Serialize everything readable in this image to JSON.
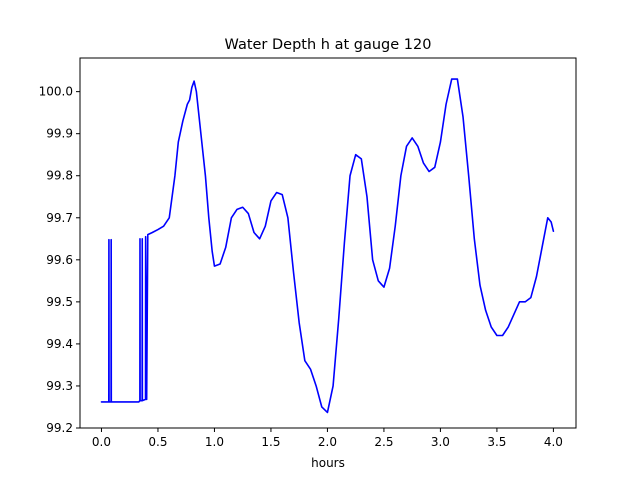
{
  "chart_data": {
    "type": "line",
    "title": "Water Depth h at gauge 120",
    "xlabel": "hours",
    "ylabel": "",
    "xlim": [
      -0.19,
      4.2
    ],
    "ylim": [
      99.2,
      100.08
    ],
    "x_ticks": [
      0.0,
      0.5,
      1.0,
      1.5,
      2.0,
      2.5,
      3.0,
      3.5,
      4.0
    ],
    "x_tick_labels": [
      "0.0",
      "0.5",
      "1.0",
      "1.5",
      "2.0",
      "2.5",
      "3.0",
      "3.5",
      "4.0"
    ],
    "y_ticks": [
      99.2,
      99.3,
      99.4,
      99.5,
      99.6,
      99.7,
      99.8,
      99.9,
      100.0
    ],
    "y_tick_labels": [
      "99.2",
      "99.3",
      "99.4",
      "99.5",
      "99.6",
      "99.7",
      "99.8",
      "99.9",
      "100.0"
    ],
    "grid": false,
    "legend": "none",
    "series": [
      {
        "color": "#0000ff",
        "points": [
          [
            0.0,
            99.262
          ],
          [
            0.065,
            99.262
          ],
          [
            0.066,
            99.648
          ],
          [
            0.067,
            99.262
          ],
          [
            0.085,
            99.262
          ],
          [
            0.086,
            99.648
          ],
          [
            0.087,
            99.262
          ],
          [
            0.33,
            99.262
          ],
          [
            0.34,
            99.265
          ],
          [
            0.341,
            99.65
          ],
          [
            0.342,
            99.265
          ],
          [
            0.36,
            99.265
          ],
          [
            0.361,
            99.65
          ],
          [
            0.362,
            99.265
          ],
          [
            0.39,
            99.268
          ],
          [
            0.391,
            99.655
          ],
          [
            0.4,
            99.268
          ],
          [
            0.41,
            99.66
          ],
          [
            0.45,
            99.665
          ],
          [
            0.5,
            99.672
          ],
          [
            0.55,
            99.68
          ],
          [
            0.6,
            99.7
          ],
          [
            0.65,
            99.8
          ],
          [
            0.68,
            99.88
          ],
          [
            0.72,
            99.93
          ],
          [
            0.76,
            99.97
          ],
          [
            0.78,
            99.98
          ],
          [
            0.8,
            100.01
          ],
          [
            0.82,
            100.025
          ],
          [
            0.84,
            100.0
          ],
          [
            0.88,
            99.9
          ],
          [
            0.92,
            99.8
          ],
          [
            0.95,
            99.7
          ],
          [
            0.98,
            99.62
          ],
          [
            1.0,
            99.585
          ],
          [
            1.05,
            99.59
          ],
          [
            1.1,
            99.63
          ],
          [
            1.15,
            99.7
          ],
          [
            1.2,
            99.72
          ],
          [
            1.25,
            99.725
          ],
          [
            1.3,
            99.71
          ],
          [
            1.35,
            99.665
          ],
          [
            1.4,
            99.65
          ],
          [
            1.45,
            99.68
          ],
          [
            1.5,
            99.74
          ],
          [
            1.55,
            99.76
          ],
          [
            1.6,
            99.755
          ],
          [
            1.65,
            99.7
          ],
          [
            1.7,
            99.57
          ],
          [
            1.75,
            99.45
          ],
          [
            1.8,
            99.36
          ],
          [
            1.85,
            99.34
          ],
          [
            1.9,
            99.3
          ],
          [
            1.95,
            99.25
          ],
          [
            2.0,
            99.237
          ],
          [
            2.05,
            99.3
          ],
          [
            2.1,
            99.46
          ],
          [
            2.15,
            99.64
          ],
          [
            2.2,
            99.8
          ],
          [
            2.25,
            99.85
          ],
          [
            2.3,
            99.84
          ],
          [
            2.35,
            99.75
          ],
          [
            2.4,
            99.6
          ],
          [
            2.45,
            99.55
          ],
          [
            2.5,
            99.535
          ],
          [
            2.55,
            99.58
          ],
          [
            2.6,
            99.68
          ],
          [
            2.65,
            99.8
          ],
          [
            2.7,
            99.87
          ],
          [
            2.75,
            99.89
          ],
          [
            2.8,
            99.87
          ],
          [
            2.85,
            99.83
          ],
          [
            2.9,
            99.81
          ],
          [
            2.95,
            99.82
          ],
          [
            3.0,
            99.88
          ],
          [
            3.05,
            99.97
          ],
          [
            3.1,
            100.03
          ],
          [
            3.15,
            100.03
          ],
          [
            3.2,
            99.94
          ],
          [
            3.25,
            99.8
          ],
          [
            3.3,
            99.65
          ],
          [
            3.35,
            99.54
          ],
          [
            3.4,
            99.48
          ],
          [
            3.45,
            99.44
          ],
          [
            3.5,
            99.42
          ],
          [
            3.55,
            99.42
          ],
          [
            3.6,
            99.44
          ],
          [
            3.65,
            99.47
          ],
          [
            3.7,
            99.5
          ],
          [
            3.75,
            99.5
          ],
          [
            3.8,
            99.51
          ],
          [
            3.85,
            99.56
          ],
          [
            3.9,
            99.63
          ],
          [
            3.95,
            99.7
          ],
          [
            3.98,
            99.69
          ],
          [
            4.0,
            99.668
          ]
        ]
      }
    ]
  }
}
